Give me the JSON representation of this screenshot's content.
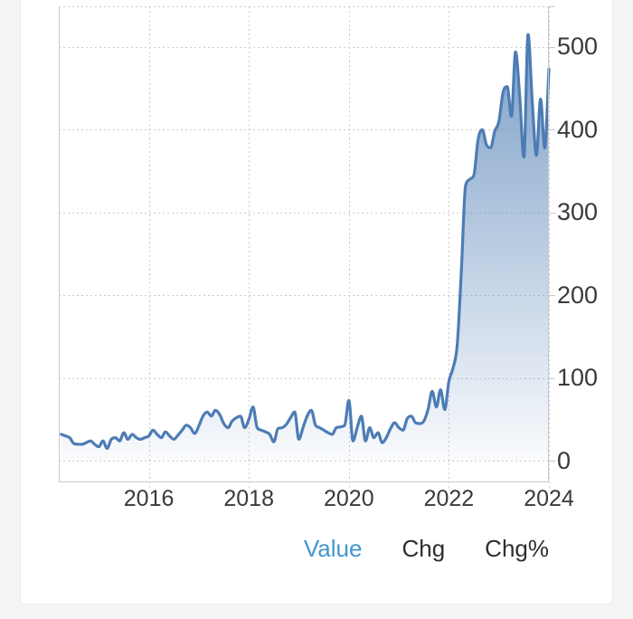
{
  "colors": {
    "page_bg": "#f5f5f5",
    "card_bg": "#ffffff",
    "card_border": "#eaeaea",
    "line": "#4d7cb4",
    "fill_top": "rgba(77,124,180,0.78)",
    "fill_bottom": "rgba(77,124,180,0.03)",
    "grid": "#cccccc",
    "plot_border": "#c9c9c9",
    "axis_text": "#3a3a3a",
    "tab_text": "#2e2e2e",
    "tab_active": "#4295cf"
  },
  "footer": {
    "tabs": [
      {
        "label": "Value",
        "active": true
      },
      {
        "label": "Chg",
        "active": false
      },
      {
        "label": "Chg%",
        "active": false
      }
    ]
  },
  "chart_data": {
    "type": "area",
    "title": "",
    "xlabel": "",
    "ylabel": "",
    "legend": "none",
    "grid": {
      "style": "dotted",
      "top_boundary_value": 549
    },
    "y_axis_side": "right",
    "area_baseline": 0,
    "xlim": [
      2014.2,
      2024.0
    ],
    "ylim": [
      -26,
      549
    ],
    "xticks": {
      "values": [
        2016,
        2018,
        2020,
        2022,
        2024
      ],
      "labels": [
        "2016",
        "2018",
        "2020",
        "2022",
        "2024"
      ]
    },
    "yticks": {
      "values": [
        0,
        100,
        200,
        300,
        400,
        500
      ],
      "labels": [
        "0",
        "100",
        "200",
        "300",
        "400",
        "500"
      ]
    },
    "series": [
      {
        "name": "Value",
        "x_start": "2014-04",
        "x_interval": "1 month",
        "values": [
          32,
          30,
          28,
          21,
          20,
          20,
          22,
          24,
          20,
          17,
          24,
          15,
          26,
          28,
          24,
          34,
          26,
          32,
          28,
          26,
          28,
          30,
          37,
          32,
          28,
          35,
          30,
          26,
          31,
          37,
          43,
          40,
          33,
          42,
          54,
          59,
          54,
          61,
          56,
          45,
          40,
          48,
          52,
          54,
          40,
          50,
          65,
          40,
          37,
          35,
          32,
          23,
          39,
          40,
          44,
          52,
          59,
          26,
          40,
          54,
          61,
          43,
          40,
          37,
          34,
          32,
          40,
          41,
          43,
          73,
          24,
          40,
          54,
          24,
          40,
          28,
          34,
          22,
          28,
          39,
          46,
          40,
          37,
          51,
          54,
          46,
          45,
          48,
          62,
          84,
          65,
          86,
          62,
          96,
          112,
          140,
          230,
          332,
          340,
          345,
          388,
          400,
          382,
          378,
          398,
          410,
          445,
          452,
          416,
          494,
          440,
          367,
          515,
          435,
          369,
          437,
          378,
          473
        ]
      }
    ]
  }
}
